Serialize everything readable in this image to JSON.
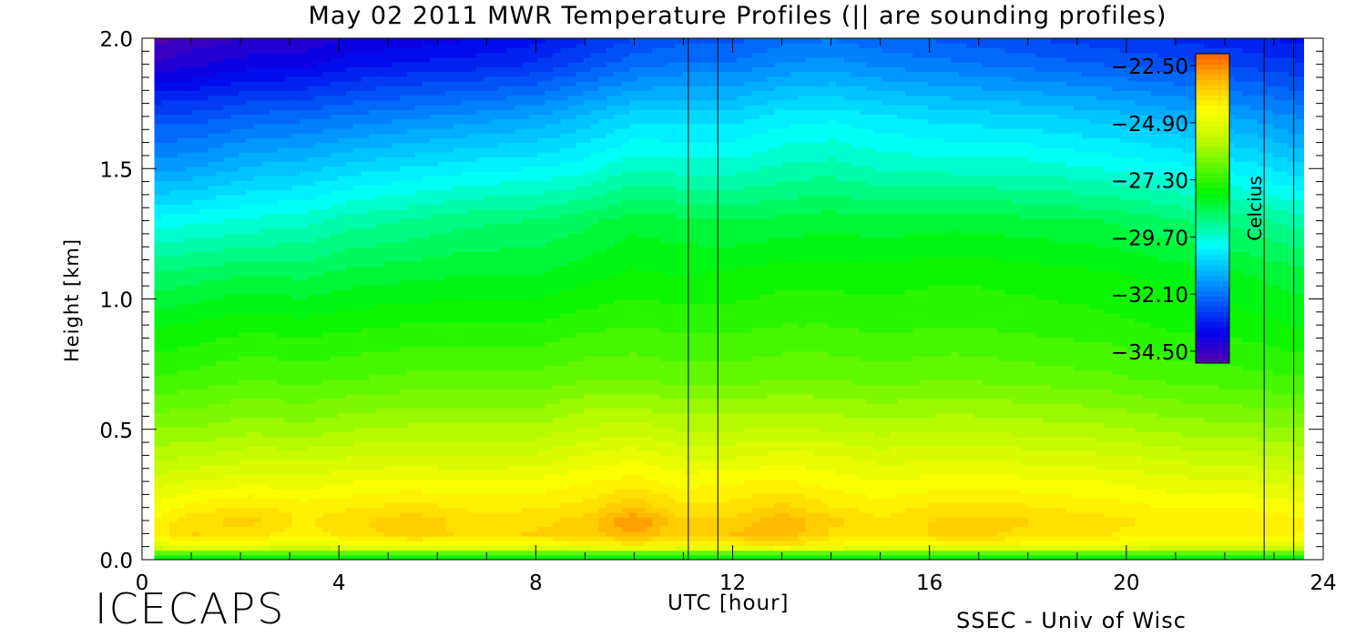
{
  "chart_data": {
    "type": "heatmap",
    "title": "May 02 2011 MWR Temperature Profiles (|| are sounding profiles)",
    "xlabel": "UTC [hour]",
    "ylabel": "Height [km]",
    "xlim": [
      0,
      24
    ],
    "ylim": [
      0,
      2
    ],
    "x_ticks": [
      "0",
      "4",
      "8",
      "12",
      "16",
      "20",
      "24"
    ],
    "y_ticks": [
      "0.0",
      "0.5",
      "1.0",
      "1.5",
      "2.0"
    ],
    "x_tick_values": [
      0,
      4,
      8,
      12,
      16,
      20,
      24
    ],
    "y_tick_values": [
      0.0,
      0.5,
      1.0,
      1.5,
      2.0
    ],
    "colorbar": {
      "label": "Celcius",
      "min": -35.0,
      "max": -22.0,
      "tick_labels": [
        "-22.50",
        "-24.90",
        "-27.30",
        "-29.70",
        "-32.10",
        "-34.50"
      ],
      "tick_values": [
        -22.5,
        -24.9,
        -27.3,
        -29.7,
        -32.1,
        -34.5
      ]
    },
    "sounding_profiles_utc": [
      11.1,
      11.7,
      22.8,
      23.4
    ],
    "data_extent_x": [
      0.25,
      23.6
    ],
    "heights_km": [
      0.0,
      0.03,
      0.05,
      0.1,
      0.15,
      0.2,
      0.3,
      0.4,
      0.5,
      0.7,
      0.9,
      1.1,
      1.3,
      1.5,
      1.7,
      1.9,
      2.0
    ],
    "times_utc": [
      0.25,
      1,
      2.25,
      3.25,
      4.25,
      5.5,
      6.75,
      8,
      9,
      10,
      11,
      12,
      13,
      14,
      15,
      16.5,
      18,
      19.5,
      21,
      22.5,
      23.6
    ],
    "temperature_c": [
      [
        -28.5,
        -28.5,
        -28.5,
        -28.5,
        -28.5,
        -28.5,
        -28.5,
        -28.5,
        -28.5,
        -28.5,
        -28.5,
        -28.5,
        -28.5,
        -28.5,
        -28.5,
        -28.5,
        -28.5,
        -28.5,
        -28.5,
        -28.5,
        -28.5
      ],
      [
        -26.5,
        -26.5,
        -26.5,
        -26.5,
        -26.5,
        -26.5,
        -26.5,
        -26.5,
        -26.5,
        -26.5,
        -26.5,
        -26.5,
        -26.5,
        -26.5,
        -26.5,
        -26.5,
        -26.5,
        -26.5,
        -26.5,
        -26.5,
        -26.5
      ],
      [
        -25.0,
        -24.6,
        -24.8,
        -25.0,
        -24.8,
        -24.7,
        -24.7,
        -24.7,
        -24.5,
        -24.2,
        -24.5,
        -24.3,
        -24.0,
        -24.4,
        -24.7,
        -24.5,
        -24.5,
        -24.7,
        -25.0,
        -25.0,
        -25.0
      ],
      [
        -24.3,
        -23.6,
        -23.8,
        -24.2,
        -23.8,
        -23.5,
        -23.7,
        -23.6,
        -23.5,
        -23.0,
        -23.6,
        -23.3,
        -23.1,
        -23.7,
        -23.9,
        -23.5,
        -23.7,
        -23.9,
        -24.2,
        -24.1,
        -24.3
      ],
      [
        -24.2,
        -23.7,
        -23.5,
        -24.0,
        -23.7,
        -23.4,
        -23.8,
        -23.7,
        -23.5,
        -22.6,
        -23.6,
        -23.5,
        -23.0,
        -23.5,
        -23.9,
        -23.5,
        -23.6,
        -23.8,
        -24.1,
        -24.0,
        -24.2
      ],
      [
        -24.5,
        -24.1,
        -23.9,
        -24.1,
        -24.0,
        -23.8,
        -24.0,
        -24.0,
        -23.8,
        -23.3,
        -23.9,
        -23.8,
        -23.5,
        -23.9,
        -24.1,
        -23.8,
        -23.9,
        -24.1,
        -24.3,
        -24.3,
        -24.5
      ],
      [
        -25.1,
        -24.9,
        -24.7,
        -24.8,
        -24.6,
        -24.5,
        -24.6,
        -24.5,
        -24.3,
        -24.1,
        -24.4,
        -24.3,
        -24.2,
        -24.4,
        -24.6,
        -24.4,
        -24.5,
        -24.6,
        -24.8,
        -24.9,
        -25.1
      ],
      [
        -25.7,
        -25.6,
        -25.4,
        -25.4,
        -25.3,
        -25.2,
        -25.3,
        -25.2,
        -24.9,
        -24.7,
        -25.0,
        -25.0,
        -24.8,
        -24.9,
        -25.1,
        -25.0,
        -25.1,
        -25.2,
        -25.4,
        -25.5,
        -25.7
      ],
      [
        -26.2,
        -26.2,
        -26.0,
        -26.1,
        -25.9,
        -25.8,
        -25.8,
        -25.8,
        -25.5,
        -25.4,
        -25.6,
        -25.6,
        -25.5,
        -25.6,
        -25.7,
        -25.6,
        -25.7,
        -25.8,
        -26.0,
        -26.1,
        -26.2
      ],
      [
        -27.2,
        -27.1,
        -26.9,
        -27.0,
        -26.9,
        -26.8,
        -26.8,
        -26.8,
        -26.6,
        -26.6,
        -26.7,
        -26.7,
        -26.6,
        -26.6,
        -26.7,
        -26.6,
        -26.7,
        -26.8,
        -27.0,
        -27.1,
        -27.2
      ],
      [
        -27.9,
        -27.8,
        -27.6,
        -27.7,
        -27.6,
        -27.5,
        -27.5,
        -27.5,
        -27.3,
        -27.2,
        -27.3,
        -27.3,
        -27.2,
        -27.2,
        -27.3,
        -27.2,
        -27.3,
        -27.4,
        -27.6,
        -27.7,
        -27.9
      ],
      [
        -28.8,
        -28.7,
        -28.5,
        -28.6,
        -28.4,
        -28.3,
        -28.2,
        -28.2,
        -28.0,
        -27.8,
        -27.9,
        -27.8,
        -27.7,
        -27.7,
        -27.7,
        -27.6,
        -27.7,
        -27.8,
        -28.0,
        -28.2,
        -28.4
      ],
      [
        -30.0,
        -29.9,
        -29.7,
        -29.6,
        -29.3,
        -29.1,
        -28.9,
        -28.8,
        -28.6,
        -28.3,
        -28.4,
        -28.5,
        -28.4,
        -28.3,
        -28.4,
        -28.3,
        -28.4,
        -28.5,
        -28.8,
        -29.0,
        -29.3
      ],
      [
        -31.5,
        -31.4,
        -31.0,
        -30.9,
        -30.6,
        -30.4,
        -30.2,
        -30.1,
        -29.9,
        -29.5,
        -29.6,
        -29.6,
        -29.4,
        -29.3,
        -29.5,
        -29.6,
        -29.6,
        -29.8,
        -30.0,
        -30.3,
        -30.7
      ],
      [
        -32.6,
        -32.6,
        -32.3,
        -32.2,
        -32.0,
        -31.8,
        -31.6,
        -31.4,
        -31.0,
        -30.6,
        -30.6,
        -30.6,
        -30.3,
        -30.2,
        -30.4,
        -30.6,
        -30.7,
        -30.9,
        -31.2,
        -31.5,
        -31.8
      ],
      [
        -34.3,
        -34.1,
        -33.8,
        -33.8,
        -33.5,
        -33.3,
        -33.2,
        -33.0,
        -32.6,
        -32.2,
        -32.0,
        -32.0,
        -31.7,
        -31.6,
        -31.8,
        -32.0,
        -32.2,
        -32.4,
        -32.6,
        -32.8,
        -33.0
      ],
      [
        -34.8,
        -34.6,
        -34.3,
        -34.3,
        -34.0,
        -33.9,
        -33.7,
        -33.5,
        -33.1,
        -32.7,
        -32.5,
        -32.5,
        -32.2,
        -32.1,
        -32.3,
        -32.5,
        -32.7,
        -32.9,
        -33.1,
        -33.3,
        -33.5
      ]
    ]
  },
  "footer": {
    "logo": "ICECAPS",
    "credit": "SSEC - Univ of Wisc"
  }
}
